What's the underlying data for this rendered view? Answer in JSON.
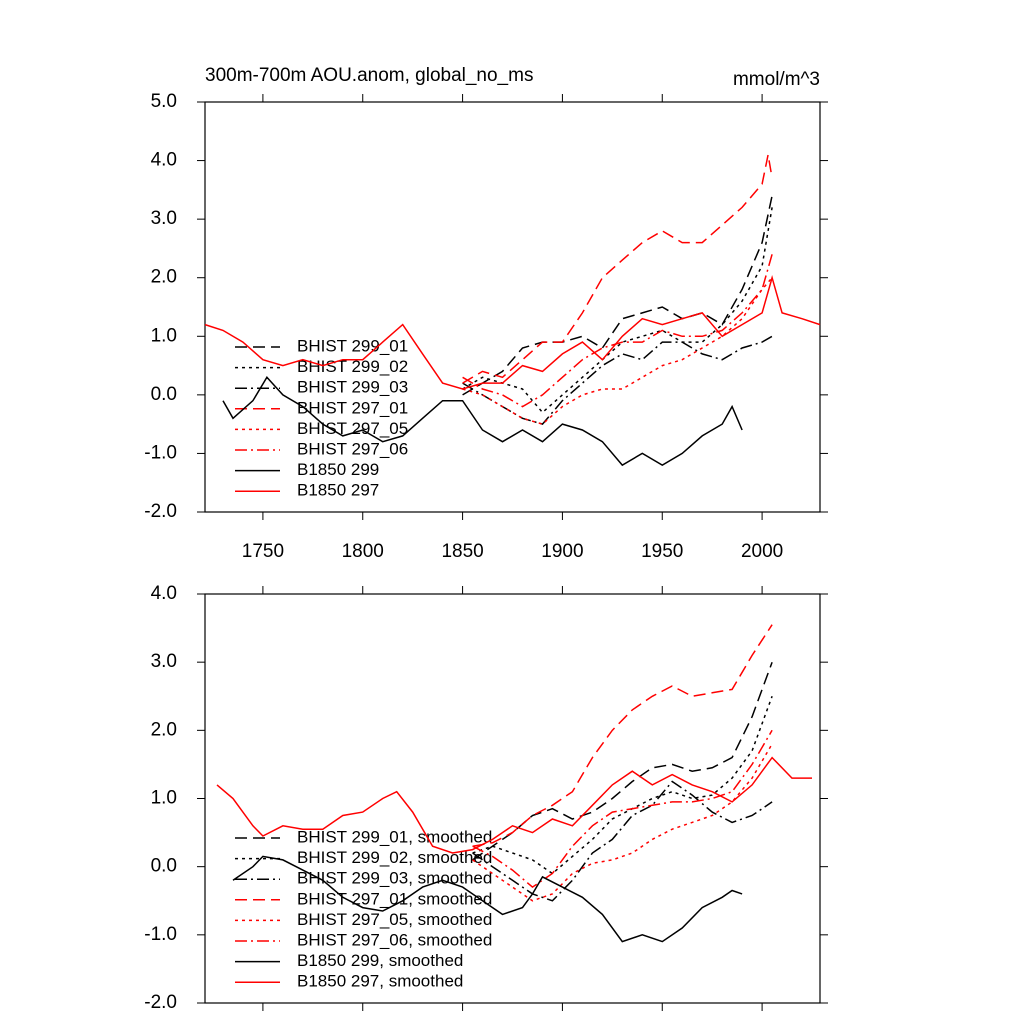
{
  "chart_data": [
    {
      "type": "line",
      "title": "300m-700m AOU.anom, global_no_ms",
      "subtitle": "mmol/m^3",
      "xlim": [
        1721,
        2029
      ],
      "ylim": [
        -2,
        5
      ],
      "xticks": [
        1750,
        1800,
        1850,
        1900,
        1950,
        2000
      ],
      "yticks": [
        {
          "value": -2,
          "label": "-2.0"
        },
        {
          "value": -1,
          "label": "-1.0"
        },
        {
          "value": 0,
          "label": "0.0"
        },
        {
          "value": 1,
          "label": "1.0"
        },
        {
          "value": 2,
          "label": "2.0"
        },
        {
          "value": 3,
          "label": "3.0"
        },
        {
          "value": 4,
          "label": "4.0"
        },
        {
          "value": 5,
          "label": "5.0"
        }
      ],
      "series": [
        {
          "name": "BHIST 299_01",
          "color": "#000000",
          "dash": "dashed",
          "x": [
            1850,
            1860,
            1870,
            1880,
            1890,
            1900,
            1910,
            1920,
            1930,
            1940,
            1950,
            1960,
            1970,
            1980,
            1990,
            2000,
            2005
          ],
          "values": [
            0.0,
            0.2,
            0.4,
            0.8,
            0.9,
            0.9,
            1.0,
            0.8,
            1.3,
            1.4,
            1.5,
            1.3,
            1.4,
            1.2,
            1.8,
            2.6,
            3.4
          ]
        },
        {
          "name": "BHIST 299_02",
          "color": "#000000",
          "dash": "dotted",
          "x": [
            1850,
            1860,
            1870,
            1880,
            1890,
            1900,
            1910,
            1920,
            1930,
            1940,
            1950,
            1960,
            1970,
            1980,
            1990,
            2000,
            2005
          ],
          "values": [
            0.1,
            0.3,
            0.2,
            0.1,
            -0.3,
            0.0,
            0.3,
            0.6,
            0.9,
            1.0,
            1.1,
            0.9,
            0.9,
            1.2,
            1.6,
            2.2,
            3.2
          ]
        },
        {
          "name": "BHIST 299_03",
          "color": "#000000",
          "dash": "dashdot",
          "x": [
            1850,
            1860,
            1870,
            1880,
            1890,
            1900,
            1910,
            1920,
            1930,
            1940,
            1950,
            1960,
            1970,
            1980,
            1990,
            2000,
            2005
          ],
          "values": [
            0.2,
            0.0,
            -0.2,
            -0.4,
            -0.5,
            -0.1,
            0.2,
            0.5,
            0.7,
            0.6,
            0.9,
            0.9,
            0.7,
            0.6,
            0.8,
            0.9,
            1.0
          ]
        },
        {
          "name": "BHIST 297_01",
          "color": "#ff0000",
          "dash": "dashed",
          "x": [
            1850,
            1860,
            1870,
            1880,
            1890,
            1900,
            1910,
            1920,
            1930,
            1940,
            1950,
            1960,
            1970,
            1980,
            1990,
            2000,
            2003,
            2005
          ],
          "values": [
            0.2,
            0.4,
            0.3,
            0.6,
            0.9,
            0.9,
            1.4,
            2.0,
            2.3,
            2.6,
            2.8,
            2.6,
            2.6,
            2.9,
            3.2,
            3.6,
            4.1,
            3.7
          ]
        },
        {
          "name": "BHIST 297_05",
          "color": "#ff0000",
          "dash": "dotted",
          "x": [
            1850,
            1860,
            1870,
            1880,
            1890,
            1900,
            1910,
            1920,
            1930,
            1940,
            1950,
            1960,
            1970,
            1980,
            1990,
            2000,
            2005
          ],
          "values": [
            0.1,
            0.0,
            -0.2,
            -0.4,
            -0.5,
            -0.2,
            0.0,
            0.1,
            0.1,
            0.3,
            0.5,
            0.6,
            0.8,
            1.0,
            1.3,
            1.8,
            2.0
          ]
        },
        {
          "name": "BHIST 297_06",
          "color": "#ff0000",
          "dash": "dashdot",
          "x": [
            1850,
            1860,
            1870,
            1880,
            1890,
            1900,
            1910,
            1920,
            1930,
            1940,
            1950,
            1960,
            1970,
            1980,
            1990,
            2000,
            2005
          ],
          "values": [
            0.3,
            0.1,
            0.0,
            -0.2,
            0.0,
            0.3,
            0.6,
            0.8,
            0.9,
            0.9,
            1.1,
            1.0,
            1.0,
            1.1,
            1.4,
            1.8,
            2.4
          ]
        },
        {
          "name": "B1850 299",
          "color": "#000000",
          "dash": "solid",
          "x": [
            1730,
            1735,
            1745,
            1752,
            1760,
            1770,
            1780,
            1790,
            1800,
            1810,
            1820,
            1830,
            1840,
            1850,
            1860,
            1870,
            1880,
            1890,
            1900,
            1910,
            1920,
            1930,
            1940,
            1950,
            1960,
            1970,
            1980,
            1985,
            1990
          ],
          "values": [
            -0.1,
            -0.4,
            -0.1,
            0.3,
            0.0,
            -0.2,
            -0.5,
            -0.7,
            -0.6,
            -0.8,
            -0.7,
            -0.4,
            -0.1,
            -0.1,
            -0.6,
            -0.8,
            -0.6,
            -0.8,
            -0.5,
            -0.6,
            -0.8,
            -1.2,
            -1.0,
            -1.2,
            -1.0,
            -0.7,
            -0.5,
            -0.2,
            -0.6
          ]
        },
        {
          "name": "B1850 297",
          "color": "#ff0000",
          "dash": "solid",
          "x": [
            1721,
            1730,
            1740,
            1750,
            1760,
            1770,
            1780,
            1790,
            1800,
            1810,
            1820,
            1830,
            1840,
            1850,
            1860,
            1870,
            1880,
            1890,
            1900,
            1910,
            1920,
            1930,
            1940,
            1950,
            1960,
            1970,
            1980,
            1990,
            2000,
            2005,
            2010,
            2020,
            2029
          ],
          "values": [
            1.2,
            1.1,
            0.9,
            0.6,
            0.5,
            0.6,
            0.5,
            0.6,
            0.6,
            0.9,
            1.2,
            0.7,
            0.2,
            0.1,
            0.2,
            0.2,
            0.5,
            0.4,
            0.7,
            0.9,
            0.6,
            1.0,
            1.3,
            1.2,
            1.3,
            1.4,
            1.0,
            1.2,
            1.4,
            2.0,
            1.4,
            1.3,
            1.2
          ]
        }
      ]
    },
    {
      "type": "line",
      "xlim": [
        1721,
        2029
      ],
      "ylim": [
        -2,
        4
      ],
      "xticks": [
        1750,
        1800,
        1850,
        1900,
        1950,
        2000
      ],
      "yticks": [
        {
          "value": -2,
          "label": "-2.0"
        },
        {
          "value": -1,
          "label": "-1.0"
        },
        {
          "value": 0,
          "label": "0.0"
        },
        {
          "value": 1,
          "label": "1.0"
        },
        {
          "value": 2,
          "label": "2.0"
        },
        {
          "value": 3,
          "label": "3.0"
        },
        {
          "value": 4,
          "label": "4.0"
        }
      ],
      "series": [
        {
          "name": "BHIST 299_01, smoothed",
          "color": "#000000",
          "dash": "dashed",
          "x": [
            1855,
            1865,
            1875,
            1885,
            1895,
            1905,
            1915,
            1925,
            1935,
            1945,
            1955,
            1965,
            1975,
            1985,
            1995,
            2005
          ],
          "values": [
            0.1,
            0.3,
            0.5,
            0.75,
            0.85,
            0.7,
            0.8,
            1.0,
            1.25,
            1.45,
            1.5,
            1.4,
            1.45,
            1.6,
            2.2,
            3.0
          ]
        },
        {
          "name": "BHIST 299_02, smoothed",
          "color": "#000000",
          "dash": "dotted",
          "x": [
            1855,
            1865,
            1875,
            1885,
            1895,
            1905,
            1915,
            1925,
            1935,
            1945,
            1955,
            1965,
            1975,
            1985,
            1995,
            2005
          ],
          "values": [
            0.2,
            0.3,
            0.2,
            0.1,
            -0.1,
            0.15,
            0.4,
            0.7,
            0.85,
            1.0,
            1.1,
            1.0,
            1.05,
            1.3,
            1.7,
            2.5
          ]
        },
        {
          "name": "BHIST 299_03, smoothed",
          "color": "#000000",
          "dash": "dashdot",
          "x": [
            1855,
            1865,
            1875,
            1885,
            1895,
            1905,
            1915,
            1925,
            1935,
            1945,
            1955,
            1965,
            1975,
            1985,
            1995,
            2005
          ],
          "values": [
            0.2,
            0.0,
            -0.2,
            -0.4,
            -0.5,
            -0.2,
            0.2,
            0.4,
            0.75,
            0.9,
            1.25,
            1.05,
            0.8,
            0.65,
            0.75,
            0.95
          ]
        },
        {
          "name": "BHIST 297_01, smoothed",
          "color": "#ff0000",
          "dash": "dashed",
          "x": [
            1855,
            1865,
            1875,
            1885,
            1895,
            1905,
            1915,
            1925,
            1935,
            1945,
            1955,
            1965,
            1975,
            1985,
            1995,
            2005
          ],
          "values": [
            0.3,
            0.35,
            0.5,
            0.75,
            0.9,
            1.1,
            1.6,
            2.0,
            2.3,
            2.5,
            2.65,
            2.5,
            2.55,
            2.6,
            3.1,
            3.55
          ]
        },
        {
          "name": "BHIST 297_05, smoothed",
          "color": "#ff0000",
          "dash": "dotted",
          "x": [
            1855,
            1865,
            1875,
            1885,
            1895,
            1905,
            1915,
            1925,
            1935,
            1945,
            1955,
            1965,
            1975,
            1985,
            1995,
            2005
          ],
          "values": [
            0.1,
            -0.1,
            -0.3,
            -0.5,
            -0.4,
            -0.1,
            0.05,
            0.1,
            0.2,
            0.4,
            0.55,
            0.65,
            0.75,
            0.95,
            1.3,
            1.8
          ]
        },
        {
          "name": "BHIST 297_06, smoothed",
          "color": "#ff0000",
          "dash": "dashdot",
          "x": [
            1855,
            1865,
            1875,
            1885,
            1895,
            1905,
            1915,
            1925,
            1935,
            1945,
            1955,
            1965,
            1975,
            1985,
            1995,
            2005
          ],
          "values": [
            0.3,
            0.15,
            -0.05,
            -0.3,
            -0.1,
            0.3,
            0.6,
            0.8,
            0.85,
            0.9,
            0.95,
            0.95,
            1.0,
            1.1,
            1.5,
            2.0
          ]
        },
        {
          "name": "B1850 299, smoothed",
          "color": "#000000",
          "dash": "solid",
          "x": [
            1735,
            1745,
            1750,
            1760,
            1770,
            1780,
            1790,
            1800,
            1810,
            1820,
            1830,
            1840,
            1850,
            1860,
            1870,
            1880,
            1885,
            1890,
            1900,
            1910,
            1920,
            1930,
            1940,
            1950,
            1960,
            1970,
            1980,
            1985,
            1990
          ],
          "values": [
            -0.2,
            0.0,
            0.15,
            0.1,
            -0.05,
            -0.2,
            -0.45,
            -0.6,
            -0.65,
            -0.5,
            -0.3,
            -0.2,
            -0.3,
            -0.5,
            -0.7,
            -0.6,
            -0.4,
            -0.15,
            -0.3,
            -0.45,
            -0.7,
            -1.1,
            -1.0,
            -1.1,
            -0.9,
            -0.6,
            -0.45,
            -0.35,
            -0.4
          ]
        },
        {
          "name": "B1850 297, smoothed",
          "color": "#ff0000",
          "dash": "solid",
          "x": [
            1727,
            1735,
            1745,
            1750,
            1760,
            1770,
            1780,
            1790,
            1800,
            1810,
            1817,
            1825,
            1835,
            1845,
            1855,
            1865,
            1875,
            1885,
            1895,
            1905,
            1915,
            1925,
            1935,
            1945,
            1955,
            1965,
            1975,
            1985,
            1995,
            2005,
            2015,
            2025
          ],
          "values": [
            1.2,
            1.0,
            0.6,
            0.45,
            0.6,
            0.55,
            0.55,
            0.75,
            0.8,
            1.0,
            1.1,
            0.8,
            0.3,
            0.2,
            0.25,
            0.4,
            0.6,
            0.5,
            0.7,
            0.6,
            0.9,
            1.2,
            1.4,
            1.2,
            1.35,
            1.2,
            1.1,
            0.95,
            1.2,
            1.6,
            1.3,
            1.3
          ]
        }
      ]
    }
  ]
}
